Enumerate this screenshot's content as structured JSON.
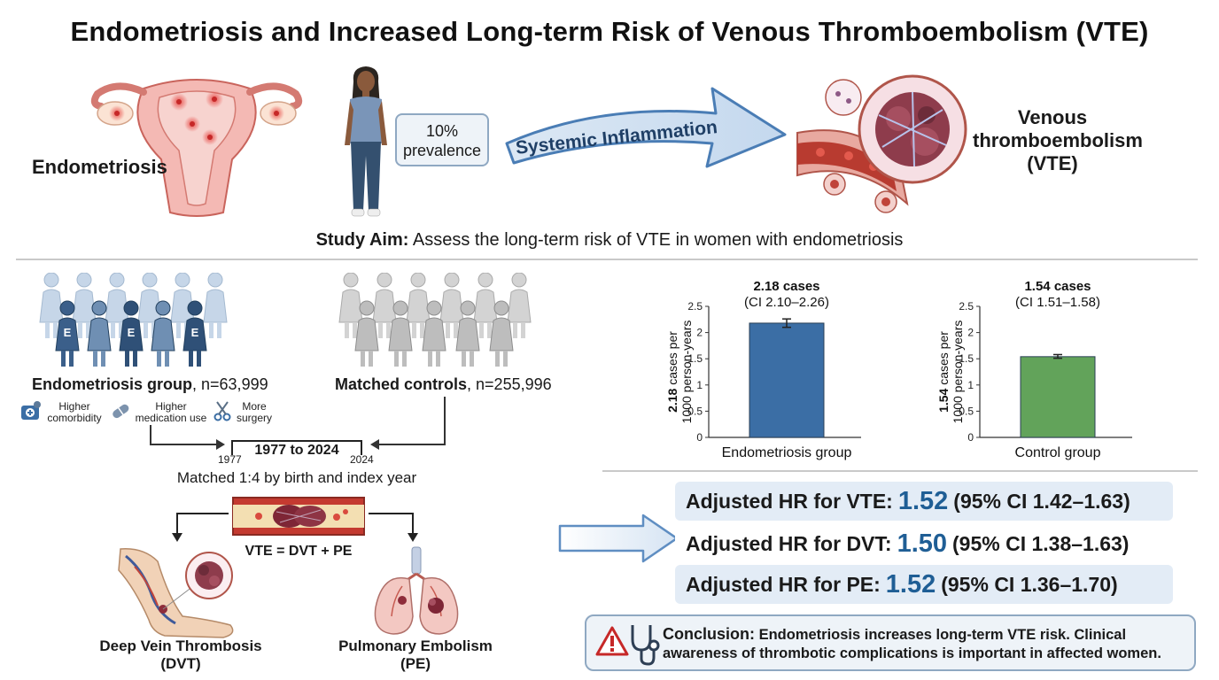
{
  "title": "Endometriosis and Increased Long-term Risk of Venous Thromboembolism (VTE)",
  "top": {
    "endometriosis_label": "Endometriosis",
    "prevalence_pct": "10%",
    "prevalence_word": "prevalence",
    "arrow_label": "Systemic Inflammation",
    "vte_line1": "Venous",
    "vte_line2": "thromboembolism",
    "vte_line3": "(VTE)",
    "aim_bold": "Study Aim:",
    "aim_text": " Assess the long-term risk of VTE in women with endometriosis"
  },
  "design": {
    "group_bold": "Endometriosis group",
    "group_n": ", n=63,999",
    "controls_bold": "Matched controls",
    "controls_n": ", n=255,996",
    "figure_letter": "E",
    "factors": [
      {
        "line1": "Higher",
        "line2": "comorbidity"
      },
      {
        "line1": "Higher",
        "line2": "medication use"
      },
      {
        "line1": "More",
        "line2": "surgery"
      }
    ],
    "period": "1977 to 2024",
    "year_start": "1977",
    "year_end": "2024",
    "matched": "Matched 1:4 by birth and index year",
    "vte_eq": "VTE = DVT + PE",
    "dvt_line1": "Deep Vein Thrombosis",
    "dvt_line2": "(DVT)",
    "pe_line1": "Pulmonary Embolism",
    "pe_line2": "(PE)"
  },
  "chart_data": [
    {
      "type": "bar",
      "categories": [
        "Endometriosis group"
      ],
      "values": [
        2.18
      ],
      "error": [
        [
          2.1,
          2.26
        ]
      ],
      "ylim": [
        0,
        2.5
      ],
      "yticks": [
        "0",
        "0.5",
        "1",
        "1.5",
        "2",
        "2.5"
      ],
      "ylabel_bold": "2.18",
      "ylabel_rest": " cases per",
      "ylabel_line2": "1000 person-years",
      "bar_label": "2.18 cases",
      "bar_ci": "(CI 2.10–2.26)",
      "color": "#3b6ea5"
    },
    {
      "type": "bar",
      "categories": [
        "Control group"
      ],
      "values": [
        1.54
      ],
      "error": [
        [
          1.51,
          1.58
        ]
      ],
      "ylim": [
        0,
        2.5
      ],
      "yticks": [
        "0",
        "0.5",
        "1",
        "1.5",
        "2",
        "2.5"
      ],
      "ylabel_bold": "1.54",
      "ylabel_rest": " cases per",
      "ylabel_line2": "1000 person-years",
      "bar_label": "1.54 cases",
      "bar_ci": "(CI 1.51–1.58)",
      "color": "#62a35a"
    }
  ],
  "results": [
    {
      "label": "Adjusted HR for VTE:",
      "value": "1.52",
      "ci": "(95% CI 1.42–1.63)"
    },
    {
      "label": "Adjusted HR for DVT:",
      "value": "1.50",
      "ci": "(95% CI 1.38–1.63)"
    },
    {
      "label": "Adjusted HR for PE:",
      "value": "1.52",
      "ci": "(95% CI 1.36–1.70)"
    }
  ],
  "conclusion": {
    "bold": "Conclusion:",
    "line1": " Endometriosis increases long-term VTE risk. Clinical",
    "line2": "awareness of thrombotic complications is important in affected women."
  },
  "colors": {
    "accent_blue": "#1f5e95",
    "endo_bar": "#3b6ea5",
    "control_bar": "#62a35a",
    "result_box": "#e3ecf6"
  }
}
